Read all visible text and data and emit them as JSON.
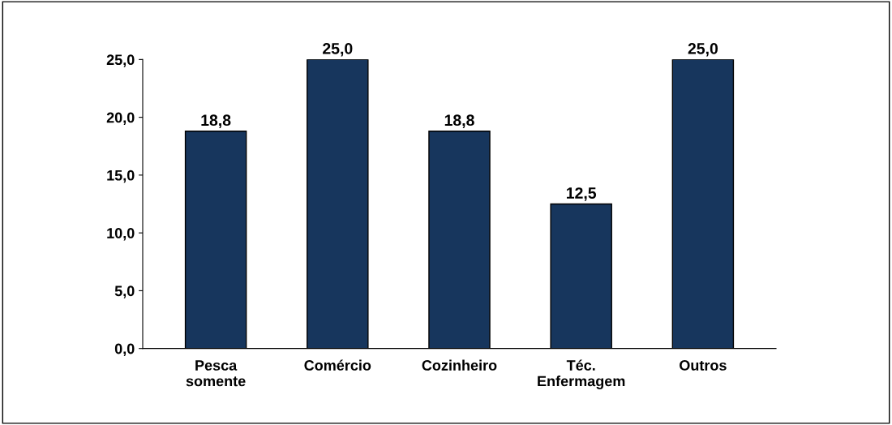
{
  "chart_data": {
    "type": "bar",
    "categories": [
      "Pesca\nsomente",
      "Comércio",
      "Cozinheiro",
      "Téc.\nEnfermagem",
      "Outros"
    ],
    "values": [
      18.8,
      25.0,
      18.8,
      12.5,
      25.0
    ],
    "value_labels": [
      "18,8",
      "25,0",
      "18,8",
      "12,5",
      "25,0"
    ],
    "color": "#17365d",
    "ylim": [
      0,
      25
    ],
    "yticks": [
      {
        "value": 0,
        "label": "0,0"
      },
      {
        "value": 5,
        "label": "5,0"
      },
      {
        "value": 10,
        "label": "10,0"
      },
      {
        "value": 15,
        "label": "15,0"
      },
      {
        "value": 20,
        "label": "20,0"
      },
      {
        "value": 25,
        "label": "25,0"
      }
    ],
    "grid": false,
    "legend": false
  }
}
